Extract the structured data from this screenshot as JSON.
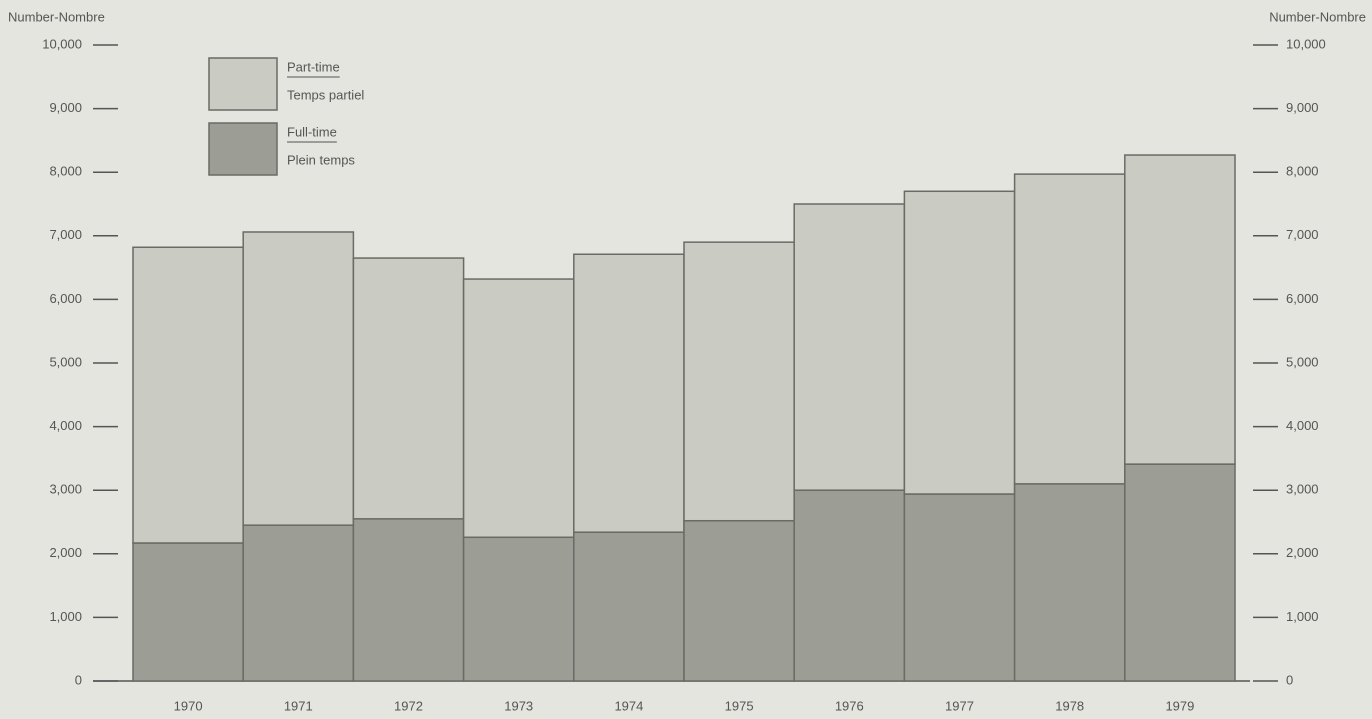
{
  "chart_data": {
    "type": "stacked_bar",
    "y_label": "Number-Nombre",
    "y2_label": "Number-Nombre",
    "categories": [
      "1970",
      "1971",
      "1972",
      "1973",
      "1974",
      "1975",
      "1976",
      "1977",
      "1978",
      "1979"
    ],
    "series": [
      {
        "name": "Full-time",
        "name_fr": "Plein temps",
        "color": "#9c9d95",
        "values": [
          2170,
          2450,
          2550,
          2260,
          2340,
          2520,
          3000,
          2940,
          3100,
          3410
        ]
      },
      {
        "name": "Part-time",
        "name_fr": "Temps partiel",
        "color": "#cacbc3",
        "values": [
          4650,
          4610,
          4100,
          4060,
          4370,
          4380,
          4500,
          4760,
          4870,
          4860
        ]
      }
    ],
    "ylim": [
      0,
      10000
    ],
    "yticks": [
      0,
      {
        "value": 1000,
        "label": "1,000"
      },
      {
        "value": 2000,
        "label": "2,000"
      },
      {
        "value": 3000,
        "label": "3,000"
      },
      {
        "value": 4000,
        "label": "4,000"
      },
      {
        "value": 5000,
        "label": "5,000"
      },
      {
        "value": 6000,
        "label": "6,000"
      },
      {
        "value": 7000,
        "label": "7,000"
      },
      {
        "value": 8000,
        "label": "8,000"
      },
      {
        "value": 9000,
        "label": "9,000"
      },
      {
        "value": 10000,
        "label": "10,000"
      }
    ],
    "y2lim": [
      0,
      10000
    ],
    "y2ticks": [
      0,
      {
        "value": 1000,
        "label": "1,000"
      },
      {
        "value": 2000,
        "label": "2,000"
      },
      {
        "value": 3000,
        "label": "3,000"
      },
      {
        "value": 4000,
        "label": "4,000"
      },
      {
        "value": 5000,
        "label": "5,000"
      },
      {
        "value": 6000,
        "label": "6,000"
      },
      {
        "value": 7000,
        "label": "7,000"
      },
      {
        "value": 8000,
        "label": "8,000"
      },
      {
        "value": 9000,
        "label": "9,000"
      },
      {
        "value": 10000,
        "label": "10,000"
      }
    ],
    "legend": "upper left"
  }
}
